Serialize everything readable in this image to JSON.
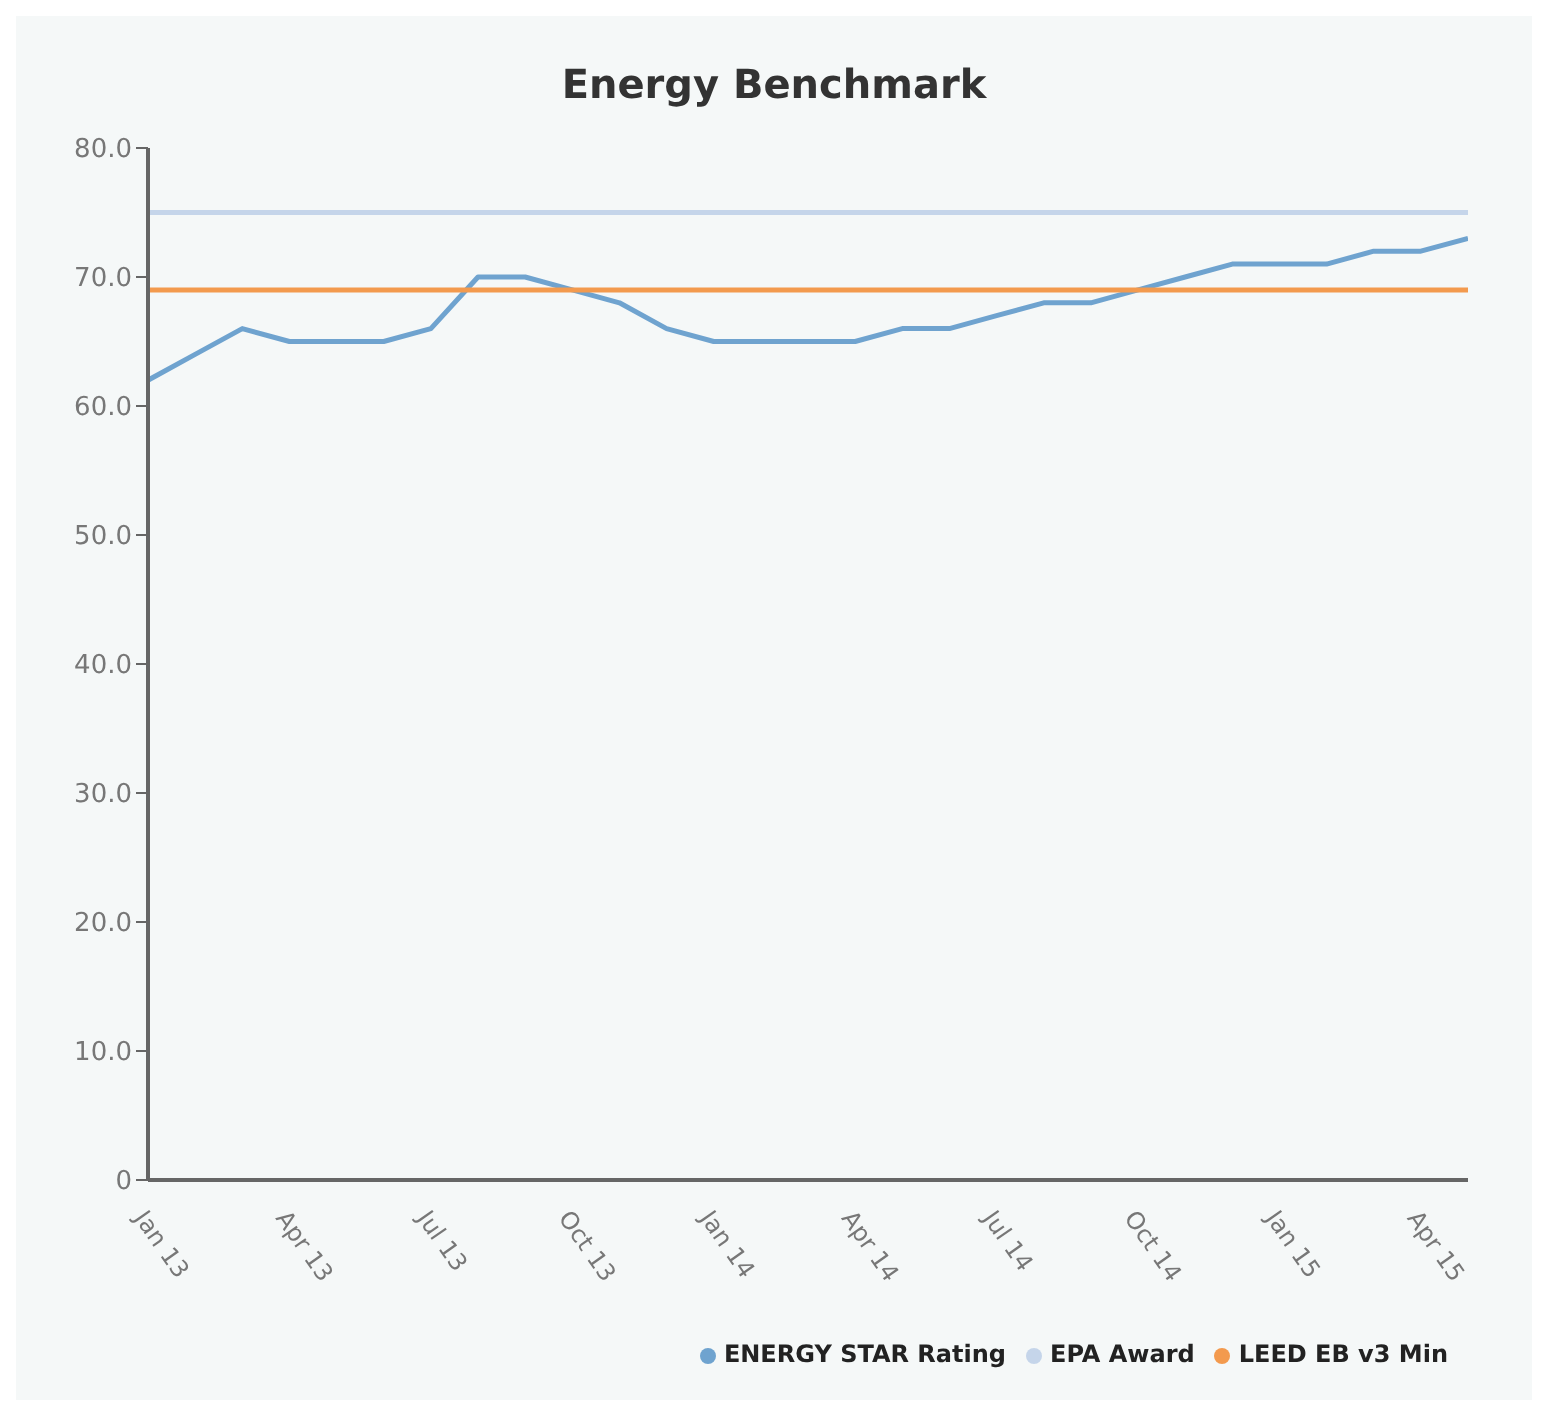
{
  "chart_data": {
    "type": "line",
    "title": "Energy Benchmark",
    "categories": [
      "Jan 13",
      null,
      null,
      "Apr 13",
      null,
      null,
      "Jul 13",
      null,
      null,
      "Oct 13",
      null,
      null,
      "Jan 14",
      null,
      null,
      "Apr 14",
      null,
      null,
      "Jul 14",
      null,
      null,
      "Oct 14",
      null,
      null,
      "Jan 15",
      null,
      null,
      "Apr 15",
      null
    ],
    "series": [
      {
        "name": "ENERGY STAR Rating",
        "color": "#6fa3cf",
        "values": [
          62,
          64,
          66,
          65,
          65,
          65,
          66,
          70,
          70,
          69,
          68,
          66,
          65,
          65,
          65,
          65,
          66,
          66,
          67,
          68,
          68,
          69,
          70,
          71,
          71,
          71,
          72,
          72,
          73
        ]
      },
      {
        "name": "EPA Award",
        "color": "#c5d5ea",
        "values": [
          75,
          75,
          75,
          75,
          75,
          75,
          75,
          75,
          75,
          75,
          75,
          75,
          75,
          75,
          75,
          75,
          75,
          75,
          75,
          75,
          75,
          75,
          75,
          75,
          75,
          75,
          75,
          75,
          75
        ]
      },
      {
        "name": "LEED EB v3 Min",
        "color": "#f39a4e",
        "values": [
          69,
          69,
          69,
          69,
          69,
          69,
          69,
          69,
          69,
          69,
          69,
          69,
          69,
          69,
          69,
          69,
          69,
          69,
          69,
          69,
          69,
          69,
          69,
          69,
          69,
          69,
          69,
          69,
          69
        ]
      }
    ],
    "ylim": [
      0,
      80
    ],
    "yticks": [
      0,
      {
        "value": 10,
        "label": "10.0"
      },
      {
        "value": 20,
        "label": "20.0"
      },
      {
        "value": 30,
        "label": "30.0"
      },
      {
        "value": 40,
        "label": "40.0"
      },
      {
        "value": 50,
        "label": "50.0"
      },
      {
        "value": 60,
        "label": "60.0"
      },
      {
        "value": 70,
        "label": "70.0"
      },
      {
        "value": 80,
        "label": "80.0"
      }
    ],
    "grid": false,
    "legend": "bottom right",
    "marker": "none",
    "line_style": "solid"
  }
}
